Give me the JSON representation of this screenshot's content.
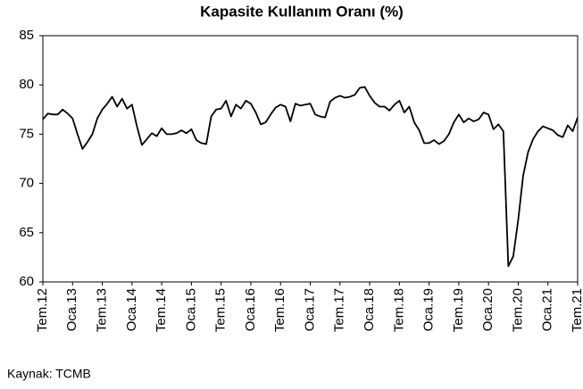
{
  "chart_data": {
    "type": "line",
    "title": "Kapasite Kullanım Oranı (%)",
    "categories": [
      "Tem.12",
      null,
      null,
      null,
      null,
      null,
      "Oca.13",
      null,
      null,
      null,
      null,
      null,
      "Tem.13",
      null,
      null,
      null,
      null,
      null,
      "Oca.14",
      null,
      null,
      null,
      null,
      null,
      "Tem.14",
      null,
      null,
      null,
      null,
      null,
      "Oca.15",
      null,
      null,
      null,
      null,
      null,
      "Tem.15",
      null,
      null,
      null,
      null,
      null,
      "Oca.16",
      null,
      null,
      null,
      null,
      null,
      "Tem.16",
      null,
      null,
      null,
      null,
      null,
      "Oca.17",
      null,
      null,
      null,
      null,
      null,
      "Tem.17",
      null,
      null,
      null,
      null,
      null,
      "Oca.18",
      null,
      null,
      null,
      null,
      null,
      "Tem.18",
      null,
      null,
      null,
      null,
      null,
      "Oca.19",
      null,
      null,
      null,
      null,
      null,
      "Tem.19",
      null,
      null,
      null,
      null,
      null,
      "Oca.20",
      null,
      null,
      null,
      null,
      null,
      "Tem.20",
      null,
      null,
      null,
      null,
      null,
      "Oca.21",
      null,
      null,
      null,
      null,
      null,
      "Tem.21"
    ],
    "series": [
      {
        "color": "#000000",
        "values": [
          76.5,
          77.1,
          77.0,
          77.0,
          77.5,
          77.1,
          76.6,
          75.0,
          73.5,
          74.2,
          75.0,
          76.6,
          77.5,
          78.1,
          78.8,
          77.8,
          78.6,
          77.6,
          78.0,
          75.8,
          73.9,
          74.5,
          75.1,
          74.8,
          75.6,
          75.0,
          75.0,
          75.1,
          75.4,
          75.1,
          75.5,
          74.4,
          74.1,
          74.0,
          76.8,
          77.5,
          77.6,
          78.4,
          76.8,
          78.0,
          77.6,
          78.4,
          78.1,
          77.2,
          76.0,
          76.2,
          77.0,
          77.7,
          78.0,
          77.8,
          76.3,
          78.1,
          77.9,
          78.0,
          78.1,
          77.0,
          76.8,
          76.7,
          78.3,
          78.7,
          78.9,
          78.7,
          78.8,
          79.0,
          79.7,
          79.8,
          78.9,
          78.2,
          77.8,
          77.8,
          77.4,
          78.0,
          78.4,
          77.2,
          77.8,
          76.2,
          75.4,
          74.1,
          74.1,
          74.4,
          74.0,
          74.3,
          75.0,
          76.2,
          77.0,
          76.2,
          76.6,
          76.3,
          76.5,
          77.2,
          77.0,
          75.5,
          76.0,
          75.3,
          61.6,
          62.6,
          66.3,
          70.8,
          73.2,
          74.5,
          75.3,
          75.8,
          75.6,
          75.4,
          74.9,
          74.7,
          75.9,
          75.3,
          76.7
        ]
      }
    ],
    "ylim": [
      60,
      85
    ],
    "yticks": [
      60,
      65,
      70,
      75,
      80,
      85
    ],
    "grid": false,
    "source": "Kaynak: TCMB"
  }
}
